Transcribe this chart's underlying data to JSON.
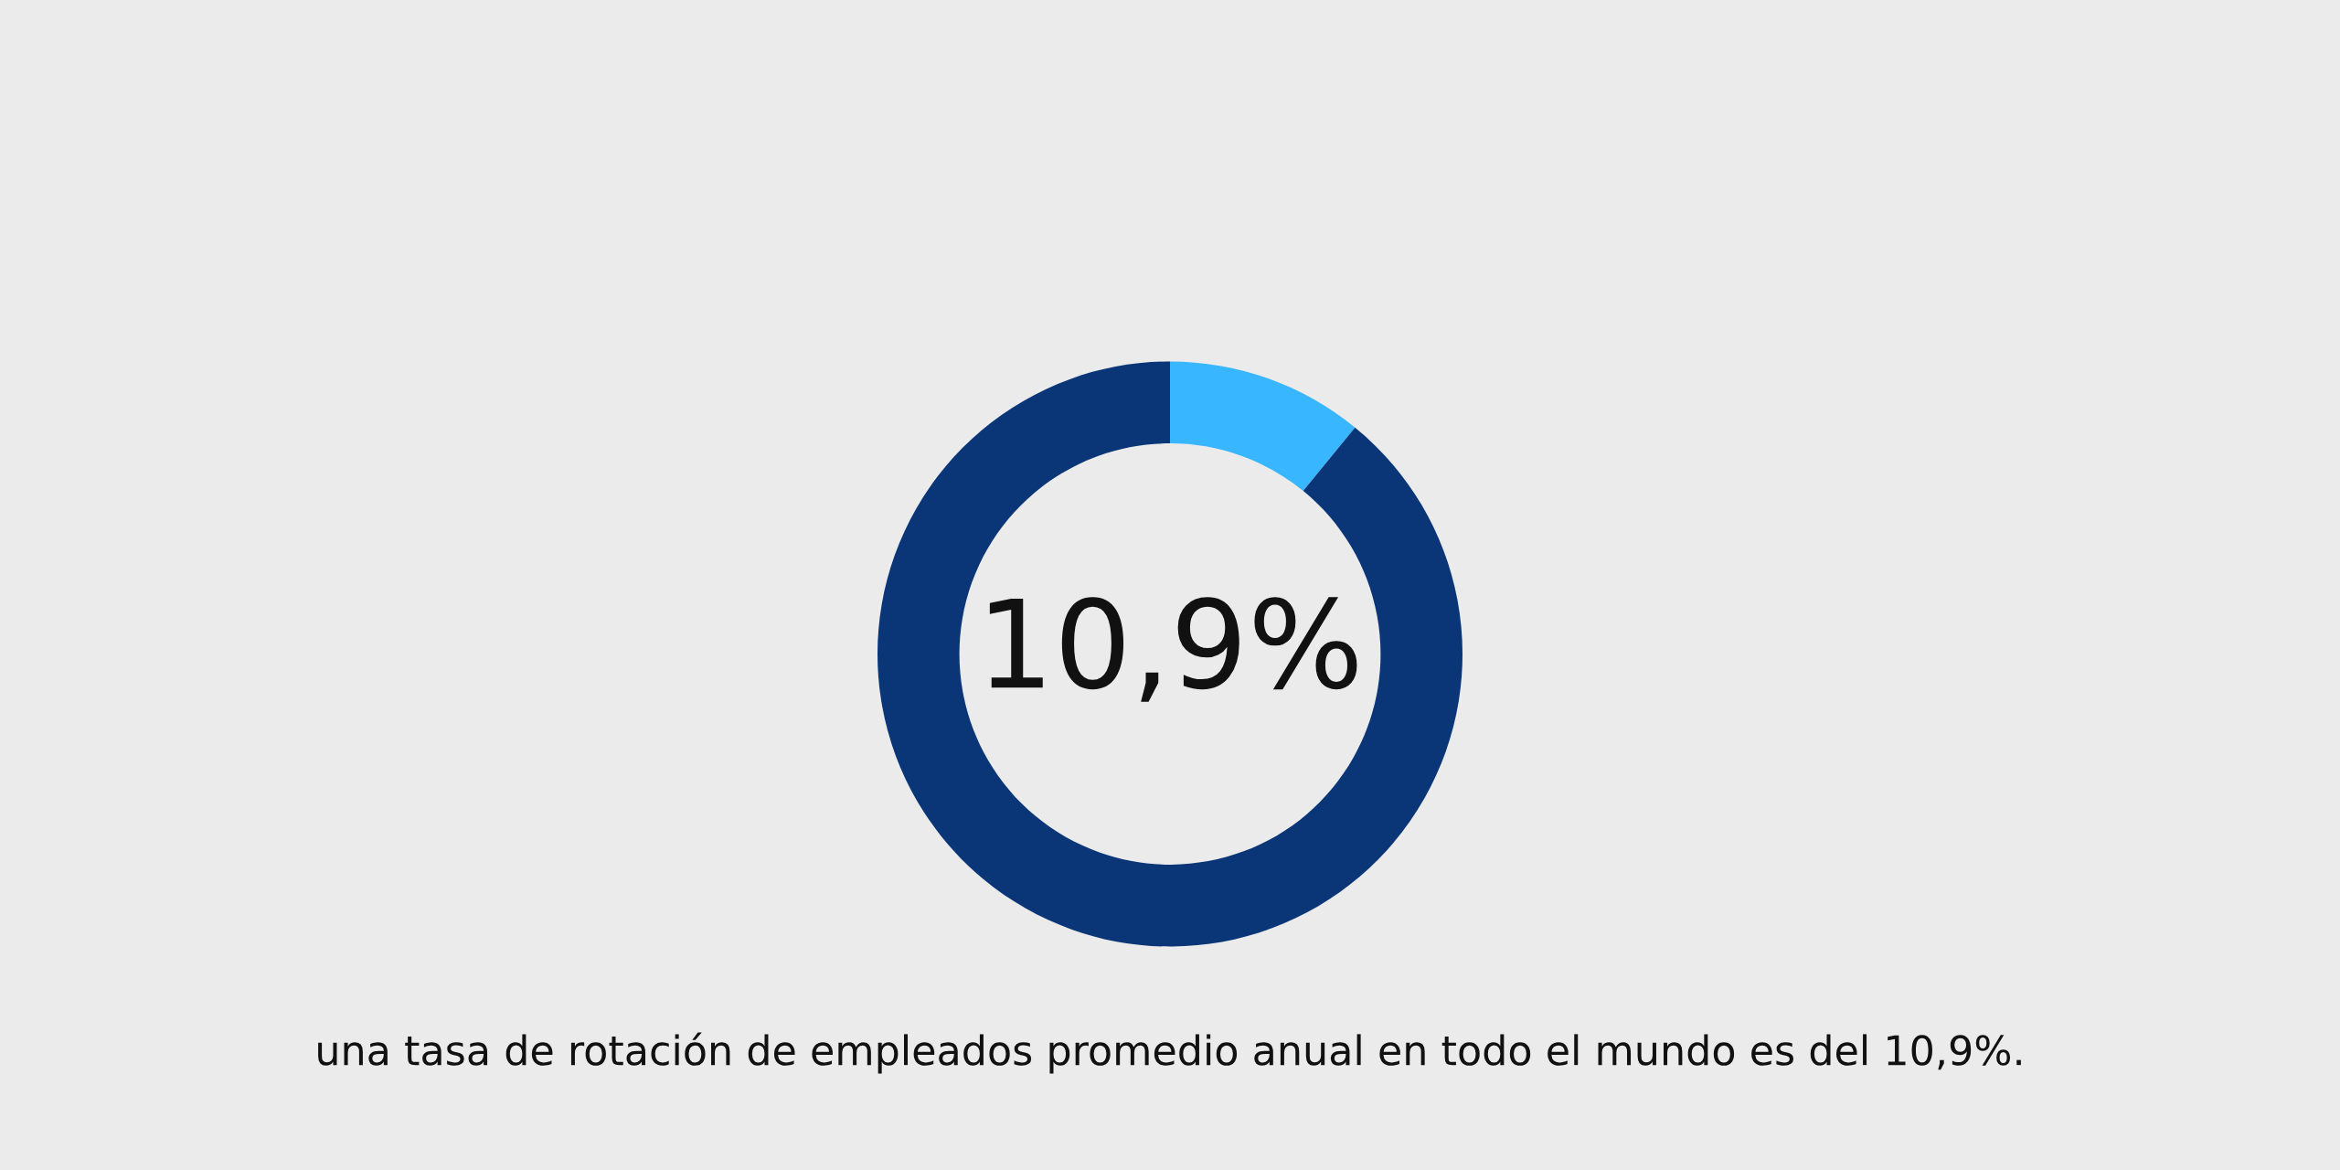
{
  "chart_data": {
    "type": "donut",
    "categories": [
      null,
      null
    ],
    "values": [
      10.9,
      89.1
    ],
    "colors": [
      "#38b6ff",
      "#0a3678"
    ],
    "value_labels": [
      "10,9%",
      null
    ],
    "annotations": [
      "una tasa de rotación de empleados promedio anual en todo el mundo es del 10,9%."
    ]
  }
}
